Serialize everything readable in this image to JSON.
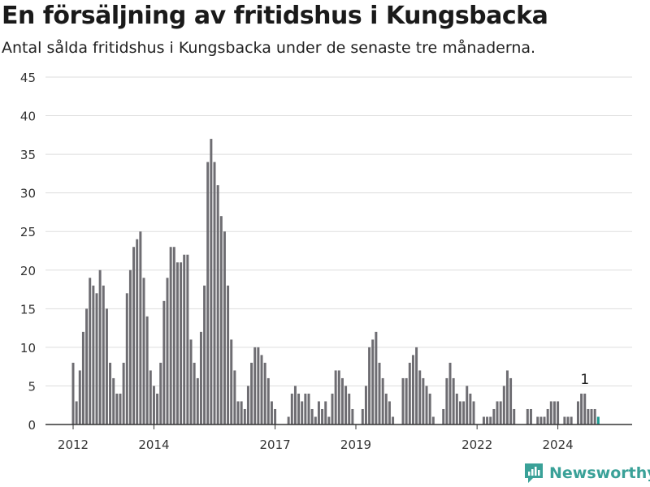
{
  "header": {
    "title": "En försäljning av fritidshus i Kungsbacka",
    "subtitle": "Antal sålda fritidshus i Kungsbacka under de senaste tre månaderna."
  },
  "brand": {
    "name": "Newsworthy",
    "icon": "newsworthy-logo-icon",
    "color": "#3aa198"
  },
  "colors": {
    "bar": "#6e6d72",
    "highlight": "#1b9a8f",
    "grid": "#dddddd",
    "axis": "#333333"
  },
  "chart_data": {
    "type": "bar",
    "title": "En försäljning av fritidshus i Kungsbacka",
    "subtitle": "Antal sålda fritidshus i Kungsbacka under de senaste tre månaderna.",
    "xlabel": "",
    "ylabel": "",
    "ylim": [
      0,
      45
    ],
    "yticks": [
      0,
      5,
      10,
      15,
      20,
      25,
      30,
      35,
      40,
      45
    ],
    "xticks": [
      "2012",
      "2014",
      "2017",
      "2019",
      "2022",
      "2024"
    ],
    "xtick_months": [
      0,
      24,
      60,
      84,
      120,
      144
    ],
    "start": "2012-01",
    "frequency": "monthly",
    "grid": true,
    "legend": "none",
    "annotation": {
      "label": "1",
      "month": 152
    },
    "highlight_last": true,
    "values": [
      8,
      3,
      7,
      12,
      15,
      19,
      18,
      17,
      20,
      18,
      15,
      8,
      6,
      4,
      4,
      8,
      17,
      20,
      23,
      24,
      25,
      19,
      14,
      7,
      5,
      4,
      8,
      16,
      19,
      23,
      23,
      21,
      21,
      22,
      22,
      11,
      8,
      6,
      12,
      18,
      34,
      37,
      34,
      31,
      27,
      25,
      18,
      11,
      7,
      3,
      3,
      2,
      5,
      8,
      10,
      10,
      9,
      8,
      6,
      3,
      2,
      0,
      0,
      0,
      1,
      4,
      5,
      4,
      3,
      4,
      4,
      2,
      1,
      3,
      2,
      3,
      1,
      4,
      7,
      7,
      6,
      5,
      4,
      2,
      0,
      0,
      2,
      5,
      10,
      11,
      12,
      8,
      6,
      4,
      3,
      1,
      0,
      0,
      6,
      6,
      8,
      9,
      10,
      7,
      6,
      5,
      4,
      1,
      0,
      0,
      2,
      6,
      8,
      6,
      4,
      3,
      3,
      5,
      4,
      3,
      0,
      0,
      1,
      1,
      1,
      2,
      3,
      3,
      5,
      7,
      6,
      2,
      0,
      0,
      0,
      2,
      2,
      0,
      1,
      1,
      1,
      2,
      3,
      3,
      3,
      0,
      1,
      1,
      1,
      0,
      3,
      4,
      4,
      2,
      2,
      2,
      1
    ]
  }
}
